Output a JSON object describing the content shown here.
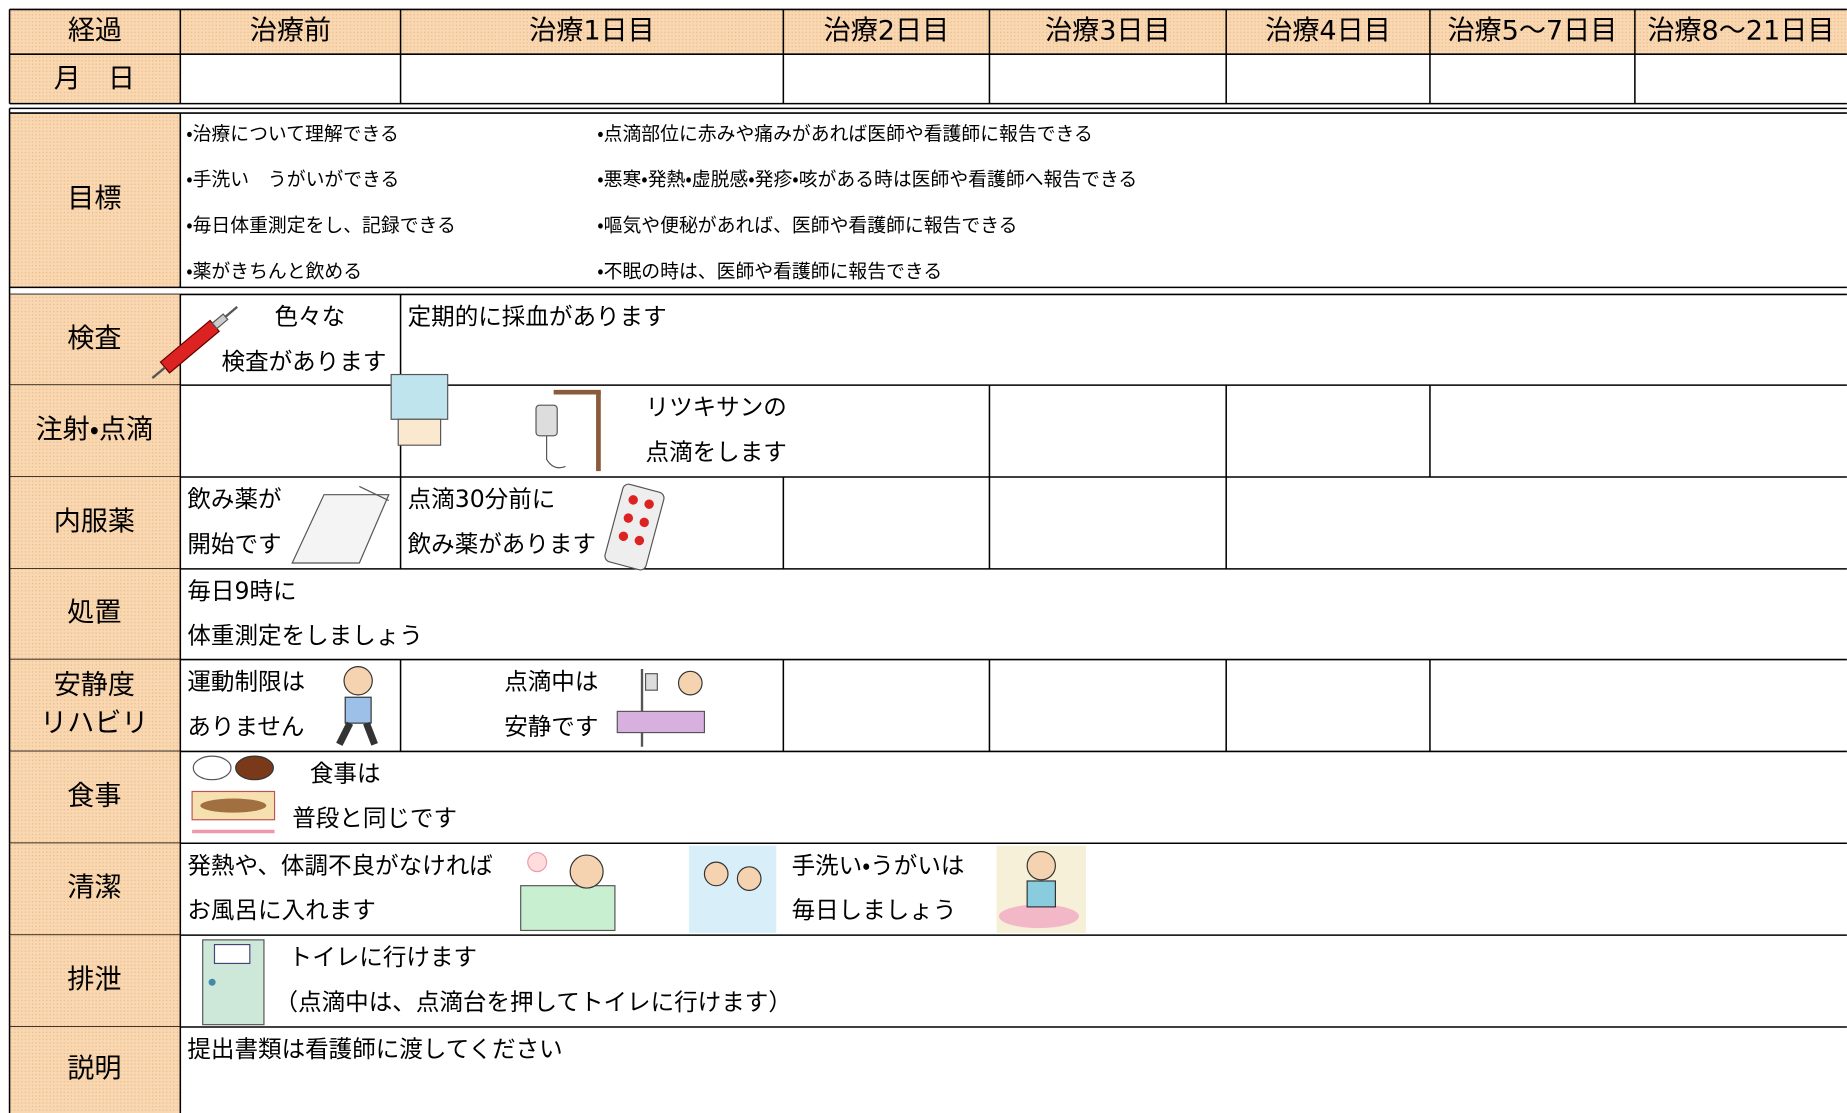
{
  "header": {
    "columns": [
      "経過",
      "治療前",
      "治療1日目",
      "治療2日目",
      "治療3日目",
      "治療4日目",
      "治療5～7日目",
      "治療8～21日目"
    ],
    "date_label": "月　日"
  },
  "goals": {
    "label": "目標",
    "items": [
      "・治療について理解できる",
      "・手洗い　うがいができる",
      "・毎日体重測定をし、記録できる",
      "・薬がきちんと飲める",
      "・点滴部位に赤みや痛みがあれば医師や看護師に報告できる",
      "・悪寒・発熱・虚脱感・発疹・咳がある時は医師や看護師へ報告できる",
      "・嘔気や便秘があれば、医師や看護師に報告できる",
      "・不眠の時は、医師や看護師に報告できる"
    ]
  },
  "rows": [
    {
      "label": [
        "検査"
      ],
      "cells": [
        [
          [
            "色々な",
            "検査があります"
          ]
        ],
        [
          [
            "定期的に採血があります"
          ]
        ]
      ]
    },
    {
      "label": [
        "注射・点滴"
      ],
      "cells": [
        [],
        [
          [
            "リツキサンの",
            "点滴をします"
          ]
        ],
        [],
        [],
        []
      ]
    },
    {
      "label": [
        "内服薬"
      ],
      "cells": [
        [
          [
            "飲み薬が",
            "開始です"
          ]
        ],
        [
          [
            "点滴30分前に",
            "飲み薬があります"
          ]
        ],
        [],
        [],
        []
      ]
    },
    {
      "label": [
        "処置"
      ],
      "cells": [
        [
          [
            "毎日9時に",
            "体重測定をしましょう"
          ]
        ]
      ]
    },
    {
      "label": [
        "安静度",
        "リハビリ"
      ],
      "cells": [
        [
          [
            "運動制限は",
            "ありません"
          ]
        ],
        [
          [
            "点滴中は",
            "安静です"
          ]
        ],
        [],
        [],
        [],
        []
      ]
    },
    {
      "label": [
        "食事"
      ],
      "cells": [
        [
          [
            "食事は",
            "普段と同じです"
          ]
        ]
      ]
    },
    {
      "label": [
        "清潔"
      ],
      "cells": [
        [
          [
            "発熱や、体調不良がなければ",
            "お風呂に入れます"
          ],
          [
            "手洗い・うがいは",
            "毎日しましょう"
          ]
        ]
      ]
    },
    {
      "label": [
        "排泄"
      ],
      "cells": [
        [
          [
            "トイレに行けます",
            "（点滴中は、点滴台を押してトイレに行けます）"
          ]
        ]
      ]
    },
    {
      "label": [
        "説明"
      ],
      "cells": [
        [
          [
            "提出書類は看護師に渡してください"
          ]
        ]
      ]
    }
  ]
}
